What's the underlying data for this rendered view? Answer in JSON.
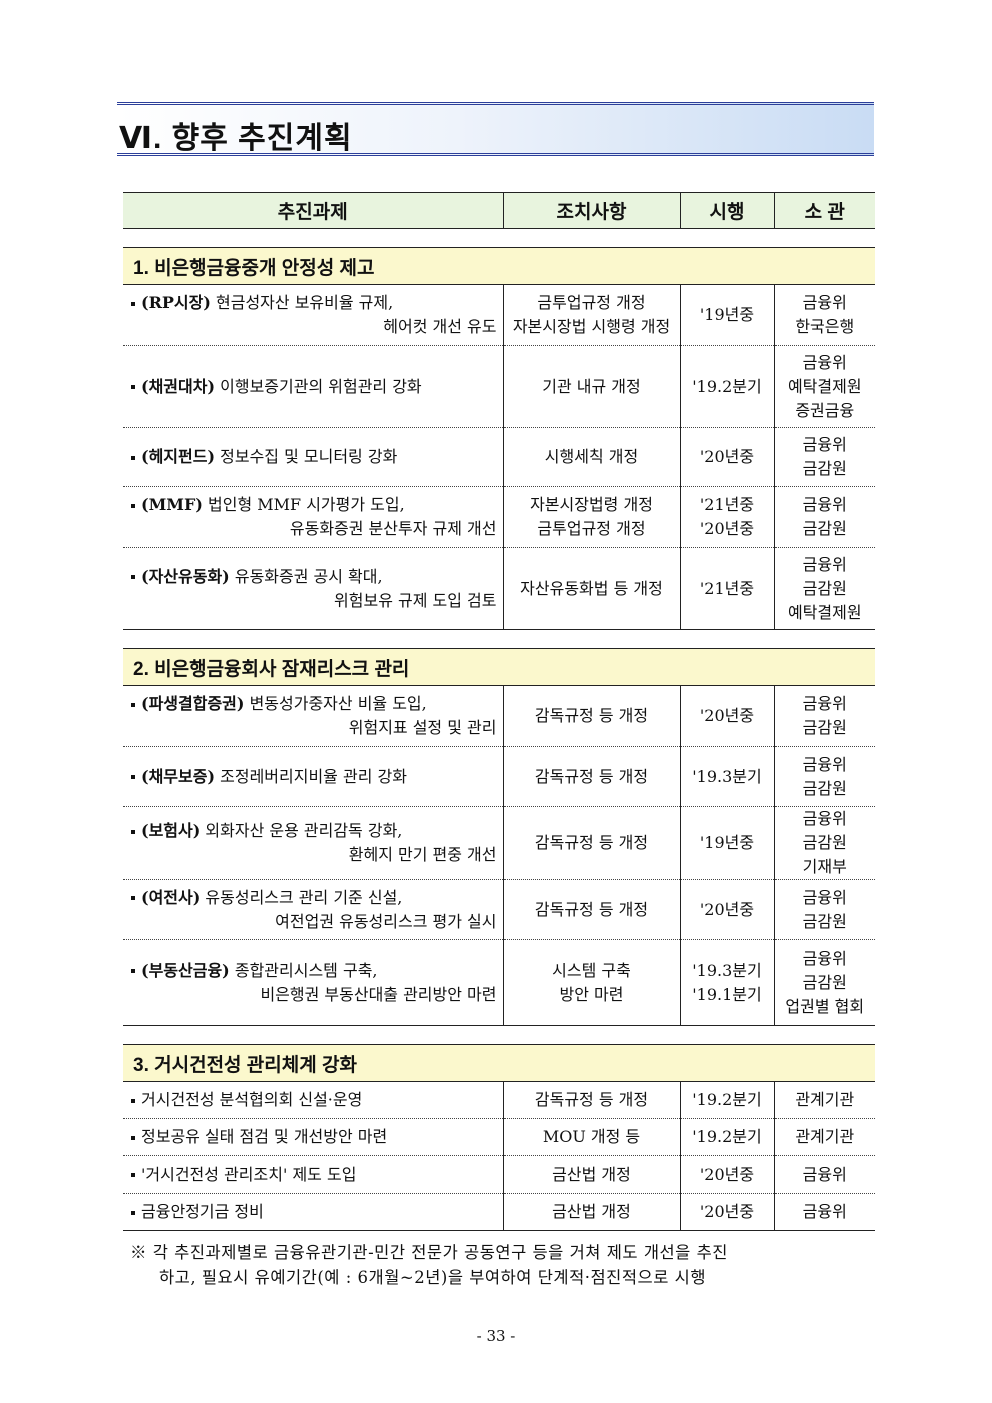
{
  "title": "Ⅵ. 향후 추진계획",
  "table": {
    "headers": [
      "추진과제",
      "조치사항",
      "시행",
      "소 관"
    ],
    "sections": [
      {
        "title": "1. 비은행금융중개 안정성 제고",
        "rows": [
          {
            "tag": "(RP시장)",
            "line1": "현금성자산 보유비율 규제,",
            "line2": "헤어컷 개선 유도",
            "action": [
              "금투업규정 개정",
              "자본시장법 시행령 개정"
            ],
            "timing": [
              "'19년중"
            ],
            "owner": [
              "금융위",
              "한국은행"
            ]
          },
          {
            "tag": "(채권대차)",
            "line1": "이행보증기관의 위험관리 강화",
            "line2": "",
            "action": [
              "기관 내규 개정"
            ],
            "timing": [
              "'19.2분기"
            ],
            "owner": [
              "금융위",
              "예탁결제원",
              "증권금융"
            ]
          },
          {
            "tag": "(헤지펀드)",
            "line1": "정보수집 및 모니터링 강화",
            "line2": "",
            "action": [
              "시행세칙 개정"
            ],
            "timing": [
              "'20년중"
            ],
            "owner": [
              "금융위",
              "금감원"
            ]
          },
          {
            "tag": "(MMF)",
            "line1": "법인형 MMF 시가평가 도입,",
            "line2": "유동화증권 분산투자 규제 개선",
            "action": [
              "자본시장법령 개정",
              "금투업규정 개정"
            ],
            "timing": [
              "'21년중",
              "'20년중"
            ],
            "owner": [
              "금융위",
              "금감원"
            ]
          },
          {
            "tag": "(자산유동화)",
            "line1": "유동화증권 공시 확대,",
            "line2": "위험보유 규제 도입 검토",
            "action": [
              "자산유동화법 등 개정"
            ],
            "timing": [
              "'21년중"
            ],
            "owner": [
              "금융위",
              "금감원",
              "예탁결제원"
            ]
          }
        ]
      },
      {
        "title": "2. 비은행금융회사 잠재리스크 관리",
        "rows": [
          {
            "tag": "(파생결합증권)",
            "line1": "변동성가중자산 비율 도입,",
            "line2": "위험지표 설정 및 관리",
            "action": [
              "감독규정 등 개정"
            ],
            "timing": [
              "'20년중"
            ],
            "owner": [
              "금융위",
              "금감원"
            ]
          },
          {
            "tag": "(채무보증)",
            "line1": "조정레버리지비율 관리 강화",
            "line2": "",
            "action": [
              "감독규정 등 개정"
            ],
            "timing": [
              "'19.3분기"
            ],
            "owner": [
              "금융위",
              "금감원"
            ]
          },
          {
            "tag": "(보험사)",
            "line1": "외화자산 운용 관리감독 강화,",
            "line2": "환헤지 만기 편중 개선",
            "action": [
              "감독규정 등 개정"
            ],
            "timing": [
              "'19년중"
            ],
            "owner": [
              "금융위",
              "금감원",
              "기재부"
            ]
          },
          {
            "tag": "(여전사)",
            "line1": "유동성리스크 관리 기준 신설,",
            "line2": "여전업권 유동성리스크 평가 실시",
            "action": [
              "감독규정 등 개정"
            ],
            "timing": [
              "'20년중"
            ],
            "owner": [
              "금융위",
              "금감원"
            ]
          },
          {
            "tag": "(부동산금융)",
            "line1": "종합관리시스템 구축,",
            "line2": "비은행권 부동산대출 관리방안 마련",
            "action": [
              "시스템 구축",
              "방안 마련"
            ],
            "timing": [
              "'19.3분기",
              "'19.1분기"
            ],
            "owner": [
              "금융위",
              "금감원",
              "업권별 협회"
            ]
          }
        ]
      },
      {
        "title": "3. 거시건전성 관리체계 강화",
        "rows": [
          {
            "tag": "",
            "line1": "거시건전성 분석협의회 신설·운영",
            "line2": "",
            "action": [
              "감독규정 등 개정"
            ],
            "timing": [
              "'19.2분기"
            ],
            "owner": [
              "관계기관"
            ]
          },
          {
            "tag": "",
            "line1": "정보공유 실태 점검 및 개선방안 마련",
            "line2": "",
            "action": [
              "MOU 개정 등"
            ],
            "timing": [
              "'19.2분기"
            ],
            "owner": [
              "관계기관"
            ]
          },
          {
            "tag": "",
            "line1": "'거시건전성 관리조치' 제도 도입",
            "line2": "",
            "action": [
              "금산법 개정"
            ],
            "timing": [
              "'20년중"
            ],
            "owner": [
              "금융위"
            ]
          },
          {
            "tag": "",
            "line1": "금융안정기금 정비",
            "line2": "",
            "action": [
              "금산법 개정"
            ],
            "timing": [
              "'20년중"
            ],
            "owner": [
              "금융위"
            ]
          }
        ]
      }
    ]
  },
  "note": {
    "line1": "※ 각 추진과제별로 금융유관기관-민간 전문가 공동연구 등을 거쳐 제도 개선을 추진",
    "line2": "하고, 필요시 유예기간(예 : 6개월~2년)을 부여하여 단계적·점진적으로 시행"
  },
  "page_number": "- 33 -"
}
